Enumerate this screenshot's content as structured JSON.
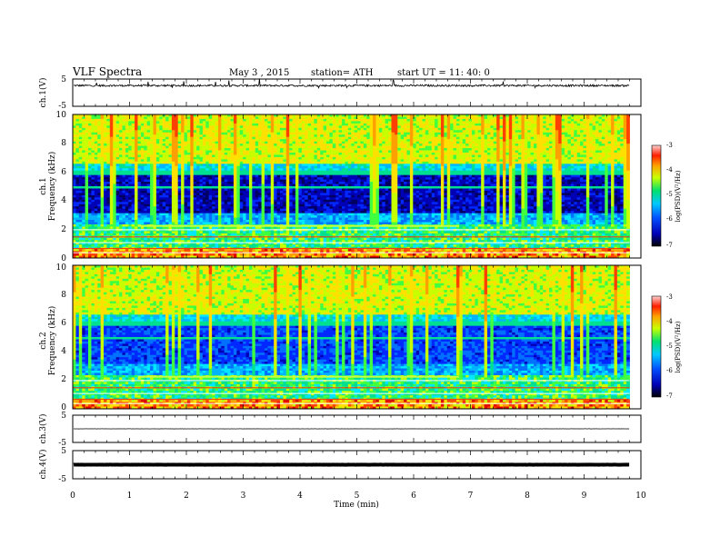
{
  "header": {
    "title": "VLF  Spectra",
    "date": "May 3  , 2015",
    "station": "station= ATH",
    "start": "start  UT  =    11: 40: 0"
  },
  "chart_data": [
    {
      "type": "line",
      "name": "ch1-waveform",
      "ylabel": "ch.1(V)",
      "ylim": [
        -5,
        5
      ],
      "yticks": [
        "5",
        "-5"
      ],
      "baseline": 2.6,
      "xlim": [
        0,
        10
      ]
    },
    {
      "type": "heatmap",
      "name": "ch1-spectrogram",
      "ylabel_lines": [
        "ch.1",
        "Frequency  (kHz)"
      ],
      "ylim": [
        0,
        10
      ],
      "yticks": [
        "10",
        "8",
        "6",
        "4",
        "2",
        "0"
      ],
      "colorbar": {
        "label": "log(PSD)(V²/Hz)",
        "ticks": [
          "-3",
          "-4",
          "-5",
          "-6",
          "-7"
        ],
        "range": [
          -7,
          -3
        ]
      }
    },
    {
      "type": "heatmap",
      "name": "ch2-spectrogram",
      "ylabel_lines": [
        "ch.2",
        "Frequency  (kHz)"
      ],
      "ylim": [
        0,
        10
      ],
      "yticks": [
        "10",
        "8",
        "6",
        "4",
        "2",
        "0"
      ],
      "colorbar": {
        "label": "log(PSD)(V²/Hz)",
        "ticks": [
          "-3",
          "-4",
          "-5",
          "-6",
          "-7"
        ],
        "range": [
          -7,
          -3
        ]
      }
    },
    {
      "type": "line",
      "name": "ch3-waveform",
      "ylabel": "ch.3(V)",
      "ylim": [
        -5,
        5
      ],
      "yticks": [
        "5",
        "-5"
      ],
      "baseline": 0.0
    },
    {
      "type": "line",
      "name": "ch4-waveform",
      "ylabel": "ch.4(V)",
      "ylim": [
        -5,
        5
      ],
      "yticks": [
        "5",
        "-5"
      ],
      "baseline": 0.0
    }
  ],
  "xaxis": {
    "label": "Time  (min)",
    "xlim": [
      0,
      10
    ],
    "ticks": [
      "0",
      "1",
      "2",
      "3",
      "4",
      "5",
      "6",
      "7",
      "8",
      "9",
      "10"
    ],
    "data_end": 9.8
  }
}
